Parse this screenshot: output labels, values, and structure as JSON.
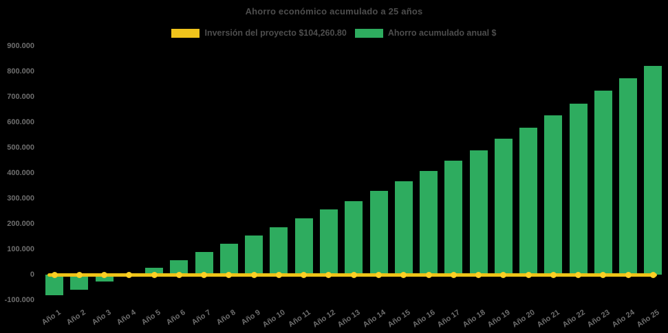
{
  "chart": {
    "title": "Ahorro económico acumulado a 25 años",
    "background_color": "#000000",
    "title_color": "#4d4d4d",
    "axis_label_color": "#6e6e6e"
  },
  "legend": {
    "position": "top",
    "items": [
      {
        "id": "inversion",
        "label": "Inversión del proyecto $104,260.80",
        "color": "#f0c41c"
      },
      {
        "id": "ahorro",
        "label": "Ahorro acumulado anual $",
        "color": "#2eac5f"
      }
    ]
  },
  "chart_data": {
    "type": "bar",
    "title": "Ahorro económico acumulado a 25 años",
    "xlabel": "",
    "ylabel": "",
    "ylim": [
      -100000,
      900000
    ],
    "grid": false,
    "legend_position": "top",
    "categories": [
      "Año 1",
      "Año 2",
      "Año 3",
      "Año 4",
      "Año 5",
      "Año 6",
      "Año 7",
      "Año 8",
      "Año 9",
      "Año 10",
      "Año 11",
      "Año 12",
      "Año 13",
      "Año 14",
      "Año 15",
      "Año 16",
      "Año 17",
      "Año 18",
      "Año 19",
      "Año 20",
      "Año 21",
      "Año 22",
      "Año 23",
      "Año 24",
      "Año 25"
    ],
    "series": [
      {
        "name": "Inversión del proyecto $104,260.80",
        "type": "line",
        "color": "#efc318",
        "marker_color": "#fccf25",
        "values": [
          0,
          0,
          0,
          0,
          0,
          0,
          0,
          0,
          0,
          0,
          0,
          0,
          0,
          0,
          0,
          0,
          0,
          0,
          0,
          0,
          0,
          0,
          0,
          0,
          0
        ]
      },
      {
        "name": "Ahorro acumulado anual $",
        "type": "bar",
        "color": "#2eac5f",
        "values": [
          -80000,
          -59000,
          -28000,
          -4000,
          27000,
          58000,
          89000,
          122000,
          154000,
          186000,
          222000,
          258000,
          290000,
          329000,
          368000,
          407000,
          450000,
          489000,
          534000,
          578000,
          626000,
          674000,
          723000,
          772000,
          822000
        ]
      }
    ],
    "yticks": [
      {
        "value": 900000,
        "label": "900.000"
      },
      {
        "value": 800000,
        "label": "800.000"
      },
      {
        "value": 700000,
        "label": "700.000"
      },
      {
        "value": 600000,
        "label": "600.000"
      },
      {
        "value": 500000,
        "label": "500.000"
      },
      {
        "value": 400000,
        "label": "400.000"
      },
      {
        "value": 300000,
        "label": "300.000"
      },
      {
        "value": 200000,
        "label": "200.000"
      },
      {
        "value": 100000,
        "label": "100.000"
      },
      {
        "value": 0,
        "label": "0"
      },
      {
        "value": -100000,
        "label": "-100.000"
      }
    ]
  }
}
